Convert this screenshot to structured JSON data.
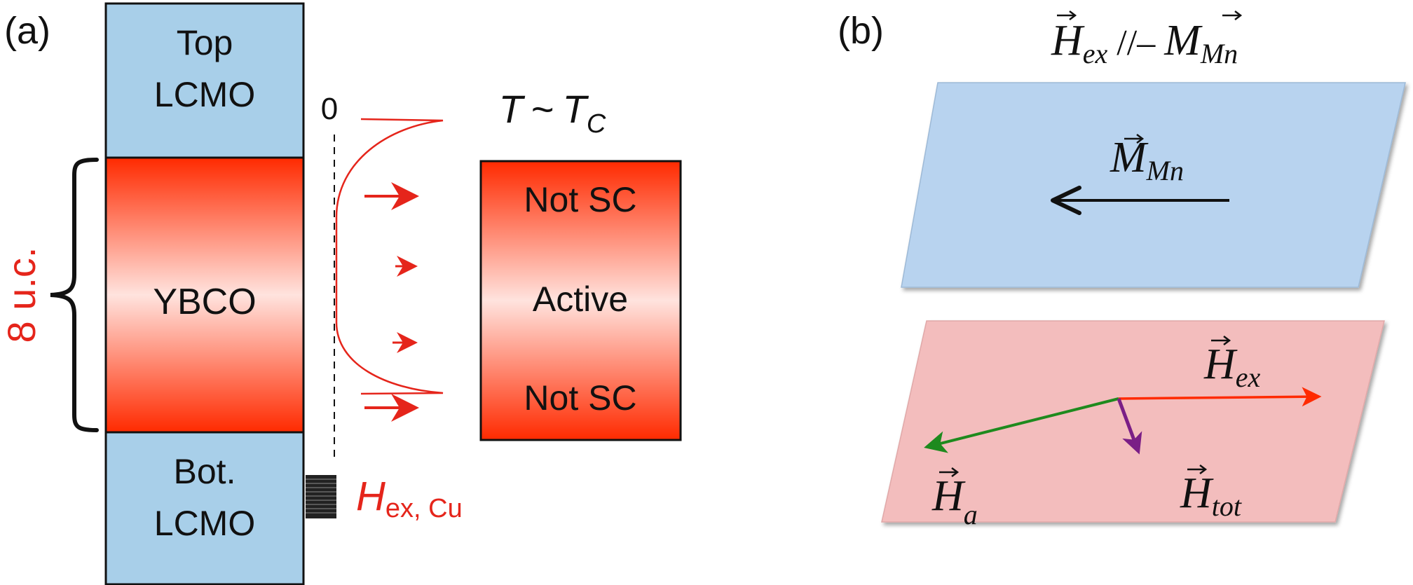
{
  "panel_a": {
    "label": "(a)",
    "top_layer": {
      "line1": "Top",
      "line2": "LCMO"
    },
    "middle_layer": "YBCO",
    "bottom_layer": {
      "line1": "Bot.",
      "line2": "LCMO"
    },
    "thickness_label": "8 u.c.",
    "zero_label": "0",
    "hex_symbol": "H",
    "hex_subscript": "ex, Cu",
    "temperature": {
      "symbol": "T",
      "relation": "~",
      "tc_symbol": "T",
      "tc_subscript": "C"
    },
    "state_box": {
      "top": "Not SC",
      "middle": "Active",
      "bottom": "Not SC"
    },
    "colors": {
      "lcmo_fill": "#a8cfe9",
      "ybco_edge": "#ff2a00",
      "ybco_center": "#ffe3de",
      "profile": "#e5251b",
      "label_red": "#e5251b"
    }
  },
  "panel_b": {
    "label": "(b)",
    "title": {
      "h_symbol": "H",
      "h_sub": "ex",
      "relation": " //– ",
      "m_symbol": "M",
      "m_sub": "Mn"
    },
    "upper_plane": {
      "vector_symbol": "M",
      "vector_sub": "Mn"
    },
    "lower_plane": {
      "hex_symbol": "H",
      "hex_sub": "ex",
      "ha_symbol": "H",
      "ha_sub": "a",
      "htot_symbol": "H",
      "htot_sub": "tot"
    },
    "colors": {
      "upper_plane": "#b8d3ef",
      "lower_plane": "#f3bdbd",
      "hex_arrow": "#ff2a00",
      "ha_arrow": "#1e8a1e",
      "htot_arrow": "#7a1e86"
    }
  }
}
